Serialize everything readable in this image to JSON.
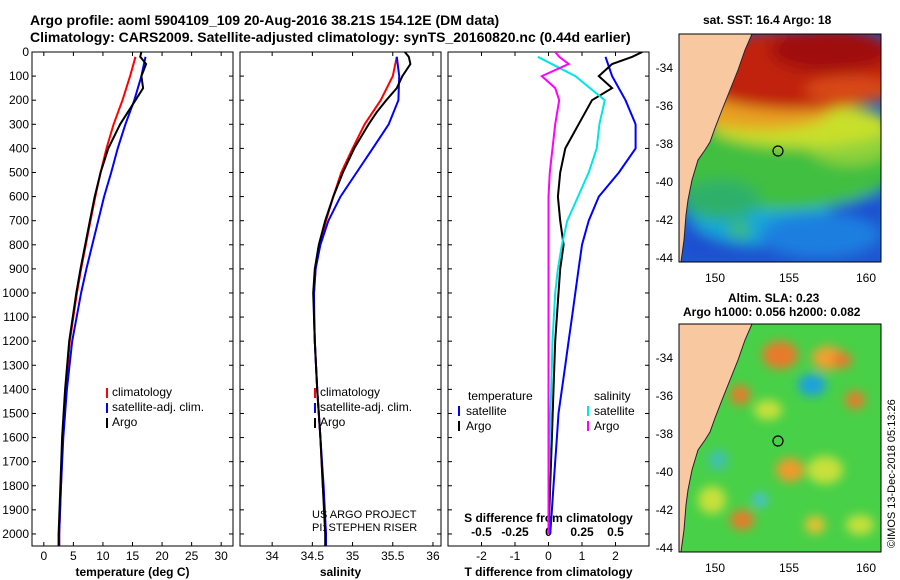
{
  "header": {
    "title_line1": "Argo profile: aoml 5904109_109 20-Aug-2016 38.21S 154.12E (DM data)",
    "title_line2": "Climatology: CARS2009. Satellite-adjusted climatology: synTS_20160820.nc (0.44d earlier)"
  },
  "watermarks": {
    "project": "US ARGO PROJECT",
    "pi": "PI: STEPHEN RISER",
    "credit": "©IMOS 13-Dec-2018 05:13:26"
  },
  "colors": {
    "climatology": "#ff0000",
    "satellite": "#0000ff",
    "argo": "#000000",
    "cyan": "#00e5e5",
    "magenta": "#ff00ff"
  },
  "depth_ticks": [
    0,
    100,
    200,
    300,
    400,
    500,
    600,
    700,
    800,
    900,
    1000,
    1100,
    1200,
    1300,
    1400,
    1500,
    1600,
    1700,
    1800,
    1900,
    2000
  ],
  "chart_data": [
    {
      "type": "line",
      "xlabel": "temperature (deg C)",
      "ylabel": "depth",
      "xlim": [
        -2,
        32
      ],
      "ylim": [
        2050,
        0
      ],
      "xticks": [
        0,
        5,
        10,
        15,
        20,
        25,
        30
      ],
      "legend": [
        "climatology",
        "satellite-adj. clim.",
        "Argo"
      ],
      "series": [
        {
          "name": "climatology",
          "color": "#ff0000",
          "depth": [
            20,
            100,
            200,
            300,
            400,
            500,
            600,
            700,
            800,
            900,
            1000,
            1200,
            1400,
            1600,
            1800,
            2000,
            2050
          ],
          "values": [
            15.5,
            14.6,
            13.3,
            11.8,
            10.6,
            9.6,
            8.7,
            7.9,
            7.1,
            6.3,
            5.6,
            4.4,
            3.7,
            3.2,
            2.9,
            2.6,
            2.6
          ]
        },
        {
          "name": "satellite-adj. clim.",
          "color": "#0000ff",
          "depth": [
            20,
            100,
            200,
            300,
            400,
            500,
            600,
            700,
            800,
            900,
            1000,
            1200,
            1400,
            1600,
            1800,
            2000,
            2050
          ],
          "values": [
            17.2,
            16.5,
            15.3,
            13.8,
            12.5,
            11.4,
            10.2,
            9.2,
            8.2,
            7.2,
            6.3,
            4.8,
            3.9,
            3.3,
            2.9,
            2.6,
            2.6
          ]
        },
        {
          "name": "Argo",
          "color": "#000000",
          "depth": [
            0,
            20,
            50,
            100,
            150,
            200,
            250,
            300,
            400,
            500,
            600,
            700,
            800,
            900,
            1000,
            1200,
            1400,
            1600,
            1800,
            2000,
            2050
          ],
          "values": [
            16.5,
            16.3,
            17.3,
            16.5,
            16.8,
            15.5,
            14.2,
            12.9,
            10.9,
            9.6,
            8.6,
            7.8,
            7.0,
            6.2,
            5.5,
            4.3,
            3.6,
            3.1,
            2.8,
            2.5,
            2.5
          ]
        }
      ]
    },
    {
      "type": "line",
      "xlabel": "salinity",
      "ylabel": "depth",
      "xlim": [
        33.6,
        36.1
      ],
      "ylim": [
        2050,
        0
      ],
      "xticks": [
        34,
        34.5,
        35,
        35.5,
        36
      ],
      "xtick_labels": [
        "34",
        "34.5",
        "35",
        "35.5",
        "36"
      ],
      "legend": [
        "climatology",
        "satellite-adj. clim.",
        "Argo"
      ],
      "series": [
        {
          "name": "climatology",
          "color": "#ff0000",
          "depth": [
            20,
            100,
            200,
            300,
            400,
            500,
            600,
            700,
            800,
            900,
            1000,
            1200,
            1400,
            1600,
            1800,
            2000,
            2050
          ],
          "values": [
            35.55,
            35.5,
            35.35,
            35.15,
            35.0,
            34.86,
            34.76,
            34.67,
            34.59,
            34.54,
            34.52,
            34.53,
            34.56,
            34.6,
            34.63,
            34.67,
            34.67
          ]
        },
        {
          "name": "satellite-adj. clim.",
          "color": "#0000ff",
          "depth": [
            20,
            100,
            200,
            300,
            400,
            500,
            600,
            700,
            800,
            900,
            1000,
            1100,
            1200,
            1400,
            1600,
            1800,
            2000,
            2050
          ],
          "values": [
            35.55,
            35.58,
            35.57,
            35.45,
            35.25,
            35.05,
            34.85,
            34.7,
            34.6,
            34.54,
            34.52,
            34.52,
            34.53,
            34.56,
            34.6,
            34.64,
            34.67,
            34.67
          ]
        },
        {
          "name": "Argo",
          "color": "#000000",
          "depth": [
            0,
            20,
            50,
            100,
            150,
            200,
            250,
            300,
            400,
            500,
            600,
            700,
            800,
            900,
            1000,
            1200,
            1400,
            1600,
            1800,
            2000,
            2050
          ],
          "values": [
            35.65,
            35.7,
            35.72,
            35.62,
            35.55,
            35.42,
            35.3,
            35.2,
            35.02,
            34.88,
            34.76,
            34.66,
            34.58,
            34.53,
            34.51,
            34.53,
            34.56,
            34.6,
            34.63,
            34.66,
            34.66
          ]
        }
      ]
    },
    {
      "type": "line",
      "xlabel": "T difference from climatology",
      "ylabel": "depth",
      "xlim": [
        -3,
        3
      ],
      "ylim": [
        2050,
        0
      ],
      "xticks": [
        -2,
        -1,
        0,
        1,
        2
      ],
      "top_axis_label": "S difference from climatology",
      "top_ticks": [
        -0.5,
        -0.25,
        0,
        0.25,
        0.5
      ],
      "top_tick_labels": [
        "-0.5",
        "-0.25",
        "0",
        "0.25",
        "0.5"
      ],
      "legend_left_title": "temperature",
      "legend_left": [
        "satellite",
        "Argo"
      ],
      "legend_right_title": "salinity",
      "legend_right": [
        "satellite",
        "Argo"
      ],
      "series": [
        {
          "name": "temperature satellite",
          "color": "#0000ff",
          "depth": [
            20,
            100,
            200,
            300,
            400,
            500,
            600,
            700,
            800,
            900,
            1000,
            1100,
            1200,
            1300,
            1400,
            1500,
            1600,
            1700,
            1800,
            1900,
            2000
          ],
          "values": [
            1.7,
            1.9,
            2.3,
            2.6,
            2.6,
            2.1,
            1.5,
            1.2,
            1.0,
            0.9,
            0.8,
            0.7,
            0.6,
            0.5,
            0.4,
            0.3,
            0.25,
            0.2,
            0.15,
            0.1,
            0.05
          ]
        },
        {
          "name": "temperature Argo",
          "color": "#000000",
          "depth": [
            0,
            20,
            50,
            100,
            150,
            200,
            300,
            400,
            500,
            600,
            700,
            800,
            900,
            1000,
            1200,
            1400,
            1600,
            1800,
            2000
          ],
          "values": [
            2.8,
            2.5,
            1.9,
            1.5,
            1.9,
            1.3,
            0.9,
            0.5,
            0.35,
            0.28,
            0.35,
            0.45,
            0.35,
            0.3,
            0.2,
            0.15,
            0.1,
            0.05,
            0.0
          ]
        },
        {
          "name": "salinity satellite",
          "color": "#00e5e5",
          "depth": [
            20,
            100,
            200,
            300,
            400,
            500,
            600,
            700,
            800,
            900,
            1000,
            1200,
            1400,
            1600,
            1800,
            2000
          ],
          "values": [
            -0.08,
            0.2,
            0.42,
            0.38,
            0.36,
            0.3,
            0.22,
            0.14,
            0.1,
            0.07,
            0.05,
            0.03,
            0.02,
            0.01,
            0.0,
            0.0
          ]
        },
        {
          "name": "salinity Argo",
          "color": "#ff00ff",
          "depth": [
            0,
            20,
            50,
            100,
            150,
            200,
            300,
            400,
            500,
            600,
            700,
            800,
            900,
            1000,
            1200,
            1400,
            1600,
            1800,
            2000
          ],
          "values": [
            0.05,
            0.08,
            0.15,
            -0.05,
            0.05,
            0.08,
            0.05,
            0.03,
            0.01,
            0.0,
            0.0,
            0.0,
            0.0,
            0.0,
            0.0,
            0.0,
            0.0,
            0.0,
            0.0
          ]
        }
      ]
    }
  ],
  "map_top": {
    "title": "sat. SST: 16.4 Argo: 18",
    "lat_labels": [
      "-34",
      "-36",
      "-38",
      "-40",
      "-42",
      "-44"
    ],
    "lon_labels": [
      "150",
      "155",
      "160"
    ]
  },
  "map_bottom": {
    "title_line1": "Altim. SLA: 0.23",
    "title_line2": "Argo h1000: 0.056 h2000: 0.082",
    "lat_labels": [
      "-34",
      "-36",
      "-38",
      "-40",
      "-42",
      "-44"
    ],
    "lon_labels": [
      "150",
      "155",
      "160"
    ]
  }
}
